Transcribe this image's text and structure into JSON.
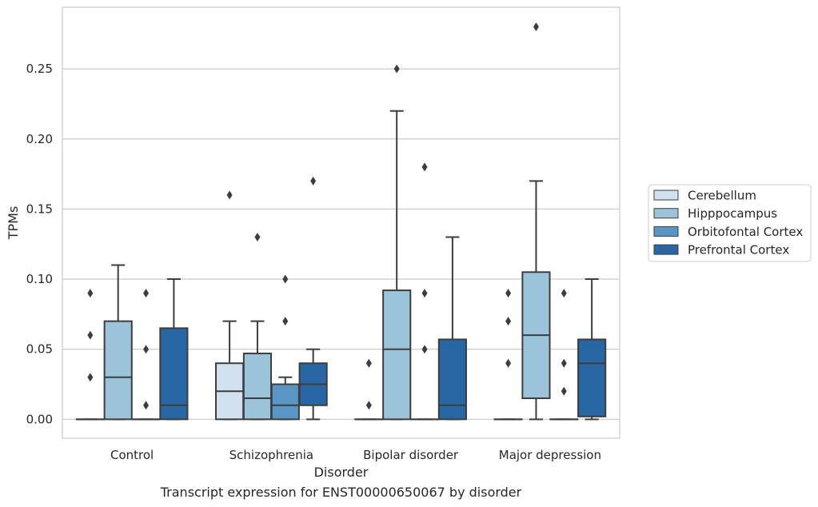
{
  "caption": "Transcript expression for ENST00000650067 by disorder",
  "chart_data": {
    "type": "boxplot",
    "xlabel": "Disorder",
    "ylabel": "TPMs",
    "ylim": [
      -0.0135,
      0.294
    ],
    "yticks": [
      0.0,
      0.05,
      0.1,
      0.15,
      0.2,
      0.25
    ],
    "ytick_labels": [
      "0.00",
      "0.05",
      "0.10",
      "0.15",
      "0.20",
      "0.25"
    ],
    "grid": true,
    "legend_position": "right",
    "categories": [
      "Control",
      "Schizophrenia",
      "Bipolar disorder",
      "Major depression"
    ],
    "series": [
      {
        "name": "Cerebellum",
        "color": "#d1e1f0",
        "boxes": [
          {
            "q1": 0.0,
            "median": 0.0,
            "q3": 0.0,
            "whislo": 0.0,
            "whishi": 0.0,
            "fliers": [
              0.03,
              0.06,
              0.09
            ]
          },
          {
            "q1": 0.0,
            "median": 0.02,
            "q3": 0.04,
            "whislo": 0.0,
            "whishi": 0.07,
            "fliers": [
              0.16
            ]
          },
          {
            "q1": 0.0,
            "median": 0.0,
            "q3": 0.0,
            "whislo": 0.0,
            "whishi": 0.0,
            "fliers": [
              0.01,
              0.04
            ]
          },
          {
            "q1": 0.0,
            "median": 0.0,
            "q3": 0.0,
            "whislo": 0.0,
            "whishi": 0.0,
            "fliers": [
              0.04,
              0.07,
              0.09
            ]
          }
        ]
      },
      {
        "name": "Hipppocampus",
        "color": "#9bc3da",
        "boxes": [
          {
            "q1": 0.0,
            "median": 0.03,
            "q3": 0.07,
            "whislo": 0.0,
            "whishi": 0.11,
            "fliers": []
          },
          {
            "q1": 0.0,
            "median": 0.015,
            "q3": 0.047,
            "whislo": 0.0,
            "whishi": 0.07,
            "fliers": [
              0.13
            ]
          },
          {
            "q1": 0.0,
            "median": 0.05,
            "q3": 0.092,
            "whislo": 0.0,
            "whishi": 0.22,
            "fliers": [
              0.25
            ]
          },
          {
            "q1": 0.015,
            "median": 0.06,
            "q3": 0.105,
            "whislo": 0.0,
            "whishi": 0.17,
            "fliers": [
              0.28
            ]
          }
        ]
      },
      {
        "name": "Orbitofontal Cortex",
        "color": "#5996c5",
        "boxes": [
          {
            "q1": 0.0,
            "median": 0.0,
            "q3": 0.0,
            "whislo": 0.0,
            "whishi": 0.0,
            "fliers": [
              0.01,
              0.05,
              0.09
            ]
          },
          {
            "q1": 0.0,
            "median": 0.01,
            "q3": 0.025,
            "whislo": 0.0,
            "whishi": 0.03,
            "fliers": [
              0.07,
              0.1
            ]
          },
          {
            "q1": 0.0,
            "median": 0.0,
            "q3": 0.0,
            "whislo": 0.0,
            "whishi": 0.0,
            "fliers": [
              0.05,
              0.09,
              0.18
            ]
          },
          {
            "q1": 0.0,
            "median": 0.0,
            "q3": 0.0,
            "whislo": 0.0,
            "whishi": 0.0,
            "fliers": [
              0.02,
              0.04,
              0.09
            ]
          }
        ]
      },
      {
        "name": "Prefrontal Cortex",
        "color": "#2866a4",
        "boxes": [
          {
            "q1": 0.0,
            "median": 0.01,
            "q3": 0.065,
            "whislo": 0.0,
            "whishi": 0.1,
            "fliers": []
          },
          {
            "q1": 0.01,
            "median": 0.025,
            "q3": 0.04,
            "whislo": 0.0,
            "whishi": 0.05,
            "fliers": [
              0.17
            ]
          },
          {
            "q1": 0.0,
            "median": 0.01,
            "q3": 0.057,
            "whislo": 0.0,
            "whishi": 0.13,
            "fliers": []
          },
          {
            "q1": 0.002,
            "median": 0.04,
            "q3": 0.057,
            "whislo": 0.0,
            "whishi": 0.1,
            "fliers": []
          }
        ]
      }
    ]
  }
}
